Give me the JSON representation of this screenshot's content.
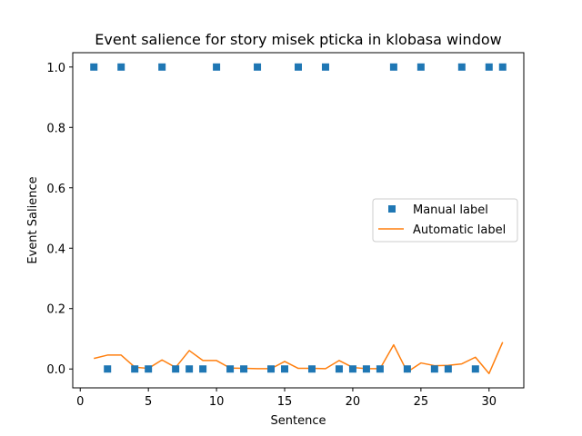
{
  "chart_data": {
    "type": "scatter+line",
    "title": "Event salience for story misek pticka in klobasa window",
    "xlabel": "Sentence",
    "ylabel": "Event Salience",
    "xlim": [
      -0.55,
      32.55
    ],
    "ylim": [
      -0.0625,
      1.0475
    ],
    "xticks": [
      0,
      5,
      10,
      15,
      20,
      25,
      30
    ],
    "yticks": [
      0.0,
      0.2,
      0.4,
      0.6,
      0.8,
      1.0
    ],
    "xtick_labels": [
      "0",
      "5",
      "10",
      "15",
      "20",
      "25",
      "30"
    ],
    "ytick_labels": [
      "0.0",
      "0.2",
      "0.4",
      "0.6",
      "0.8",
      "1.0"
    ],
    "grid": false,
    "legend_position": "center-right",
    "x": [
      1,
      2,
      3,
      4,
      5,
      6,
      7,
      8,
      9,
      10,
      11,
      12,
      13,
      14,
      15,
      16,
      17,
      18,
      19,
      20,
      21,
      22,
      23,
      24,
      25,
      26,
      27,
      28,
      29,
      30,
      31
    ],
    "series": [
      {
        "name": "Manual label",
        "kind": "scatter",
        "marker": "square",
        "color": "#1f77b4",
        "values": [
          1,
          0,
          1,
          0,
          0,
          1,
          0,
          0,
          0,
          1,
          0,
          0,
          1,
          0,
          0,
          1,
          0,
          1,
          0,
          0,
          0,
          0,
          1,
          0,
          1,
          0,
          0,
          1,
          0,
          1,
          1
        ]
      },
      {
        "name": "Automatic label",
        "kind": "line",
        "color": "#ff7f0e",
        "values": [
          0.035,
          0.046,
          0.046,
          0.006,
          0.002,
          0.03,
          0.005,
          0.061,
          0.028,
          0.028,
          0.003,
          0.002,
          0.001,
          0.001,
          0.025,
          0.002,
          0.002,
          0.001,
          0.028,
          0.005,
          0.001,
          0.001,
          0.08,
          -0.01,
          0.02,
          0.011,
          0.012,
          0.017,
          0.039,
          -0.015,
          0.089
        ]
      }
    ]
  }
}
